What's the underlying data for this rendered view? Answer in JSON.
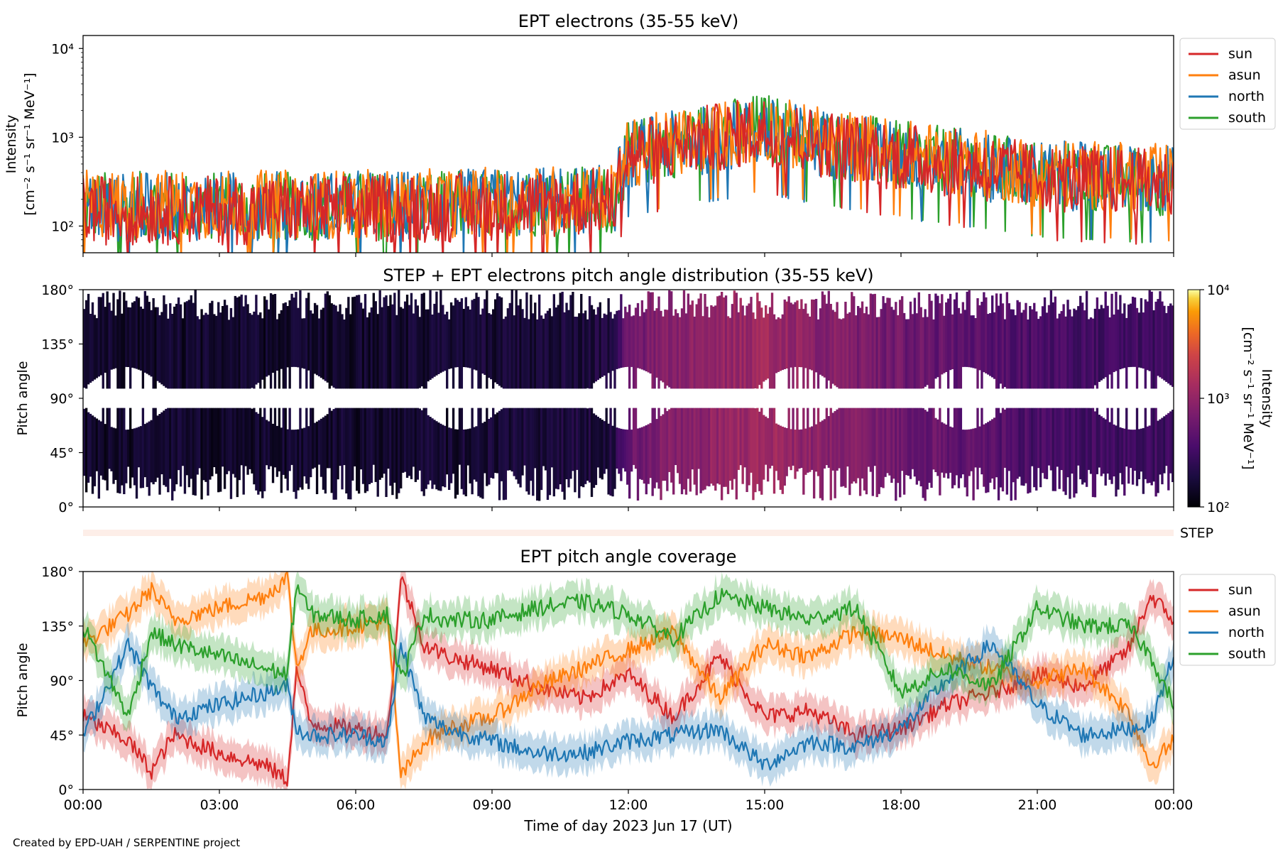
{
  "figure": {
    "date_label": "Time of day 2023 Jun 17 (UT)",
    "credit": "Created by EPD-UAH / SERPENTINE project",
    "time_ticks": [
      "00:00",
      "03:00",
      "06:00",
      "09:00",
      "12:00",
      "15:00",
      "18:00",
      "21:00",
      "00:00"
    ]
  },
  "colors": {
    "sun": "#d62728",
    "asun": "#ff7f0e",
    "north": "#1f77b4",
    "south": "#2ca02c"
  },
  "chart_data": [
    {
      "id": "intensity",
      "type": "line",
      "title": "EPT electrons (35-55 keV)",
      "ylabel_line1": "Intensity",
      "ylabel_line2": "[cm⁻² s⁻¹ sr⁻¹ MeV⁻¹]",
      "yscale": "log",
      "ylim": [
        50,
        14000
      ],
      "yticks": [
        "10²",
        "10³",
        "10⁴"
      ],
      "xlim_hours": [
        0,
        24
      ],
      "legend_position": "top-right, outside",
      "legend": [
        "sun",
        "asun",
        "north",
        "south"
      ],
      "series": [
        {
          "name": "sun",
          "envelope_hours": [
            0,
            4,
            8,
            11.7,
            12,
            15,
            16,
            18,
            21,
            24
          ],
          "typical_values": [
            150,
            150,
            160,
            190,
            600,
            1200,
            900,
            600,
            350,
            300
          ]
        },
        {
          "name": "asun",
          "envelope_hours": [
            0,
            4,
            8,
            11.7,
            12,
            15,
            16,
            18,
            21,
            24
          ],
          "typical_values": [
            180,
            175,
            180,
            210,
            650,
            1250,
            950,
            650,
            400,
            340
          ]
        },
        {
          "name": "north",
          "envelope_hours": [
            0,
            4,
            8,
            11.7,
            12,
            15,
            16,
            18,
            21,
            24
          ],
          "typical_values": [
            160,
            170,
            175,
            200,
            640,
            1150,
            900,
            600,
            380,
            320
          ]
        },
        {
          "name": "south",
          "envelope_hours": [
            0,
            4,
            8,
            11.7,
            12,
            15,
            16,
            18,
            21,
            24
          ],
          "typical_values": [
            170,
            165,
            170,
            200,
            620,
            1300,
            920,
            620,
            380,
            310
          ]
        }
      ]
    },
    {
      "id": "pad",
      "type": "heatmap",
      "title": "STEP + EPT electrons pitch angle distribution (35-55 keV)",
      "ylabel": "Pitch angle",
      "ylim_deg": [
        0,
        180
      ],
      "yticks": [
        "0°",
        "45°",
        "90°",
        "135°",
        "180°"
      ],
      "colorbar": {
        "scale": "log",
        "range": [
          100,
          10000
        ],
        "ticks": [
          "10²",
          "10³",
          "10⁴"
        ],
        "label_line1": "Intensity",
        "label_line2": "[cm⁻² s⁻¹ sr⁻¹ MeV⁻¹]",
        "colormap": "inferno"
      },
      "step_label": "STEP"
    },
    {
      "id": "coverage",
      "type": "line",
      "title": "EPT pitch angle coverage",
      "ylabel": "Pitch angle",
      "ylim_deg": [
        0,
        180
      ],
      "yticks": [
        "0°",
        "45°",
        "90°",
        "135°",
        "180°"
      ],
      "xlim_hours": [
        0,
        24
      ],
      "legend_position": "top-right, outside",
      "legend": [
        "sun",
        "asun",
        "north",
        "south"
      ],
      "series": [
        {
          "name": "sun",
          "x_hours": [
            0,
            1,
            1.5,
            2,
            3,
            4,
            4.5,
            4.7,
            5,
            6,
            6.7,
            7,
            7.5,
            8,
            9,
            10,
            11,
            12,
            13,
            14,
            15,
            16,
            17,
            18,
            19,
            20,
            21,
            22,
            23,
            23.5,
            24
          ],
          "values_deg": [
            60,
            40,
            15,
            45,
            30,
            20,
            8,
            100,
            55,
            50,
            45,
            175,
            120,
            110,
            100,
            85,
            75,
            95,
            60,
            110,
            60,
            65,
            45,
            50,
            70,
            80,
            95,
            85,
            115,
            160,
            140
          ]
        },
        {
          "name": "asun",
          "x_hours": [
            0,
            1,
            1.5,
            2,
            3,
            4,
            4.5,
            4.7,
            5,
            6,
            6.7,
            7,
            7.5,
            8,
            9,
            10,
            11,
            12,
            13,
            14,
            15,
            16,
            17,
            18,
            19,
            20,
            21,
            22,
            23,
            23.5,
            24
          ],
          "values_deg": [
            120,
            145,
            165,
            140,
            150,
            160,
            175,
            100,
            130,
            135,
            140,
            10,
            40,
            50,
            60,
            85,
            100,
            115,
            130,
            75,
            120,
            110,
            130,
            125,
            110,
            100,
            90,
            100,
            65,
            20,
            40
          ]
        },
        {
          "name": "north",
          "x_hours": [
            0,
            1,
            1.5,
            2,
            3,
            4,
            4.5,
            4.7,
            5,
            6,
            6.7,
            7,
            7.5,
            8,
            9,
            10,
            11,
            12,
            13,
            14,
            15,
            16,
            17,
            18,
            19,
            20,
            21,
            22,
            23,
            23.5,
            24
          ],
          "values_deg": [
            45,
            120,
            85,
            60,
            70,
            80,
            85,
            50,
            45,
            45,
            40,
            120,
            60,
            50,
            40,
            30,
            30,
            40,
            45,
            50,
            20,
            40,
            35,
            50,
            90,
            120,
            70,
            45,
            50,
            55,
            110
          ]
        },
        {
          "name": "south",
          "x_hours": [
            0,
            1,
            1.5,
            2,
            3,
            4,
            4.5,
            4.7,
            5,
            6,
            6.7,
            7,
            7.5,
            8,
            9,
            10,
            11,
            12,
            13,
            14,
            15,
            16,
            17,
            18,
            19,
            20,
            21,
            22,
            23,
            23.5,
            24
          ],
          "values_deg": [
            135,
            60,
            130,
            120,
            110,
            100,
            95,
            170,
            145,
            140,
            145,
            90,
            145,
            140,
            140,
            150,
            155,
            145,
            125,
            160,
            150,
            140,
            150,
            80,
            100,
            85,
            150,
            135,
            135,
            110,
            70
          ]
        }
      ]
    }
  ]
}
